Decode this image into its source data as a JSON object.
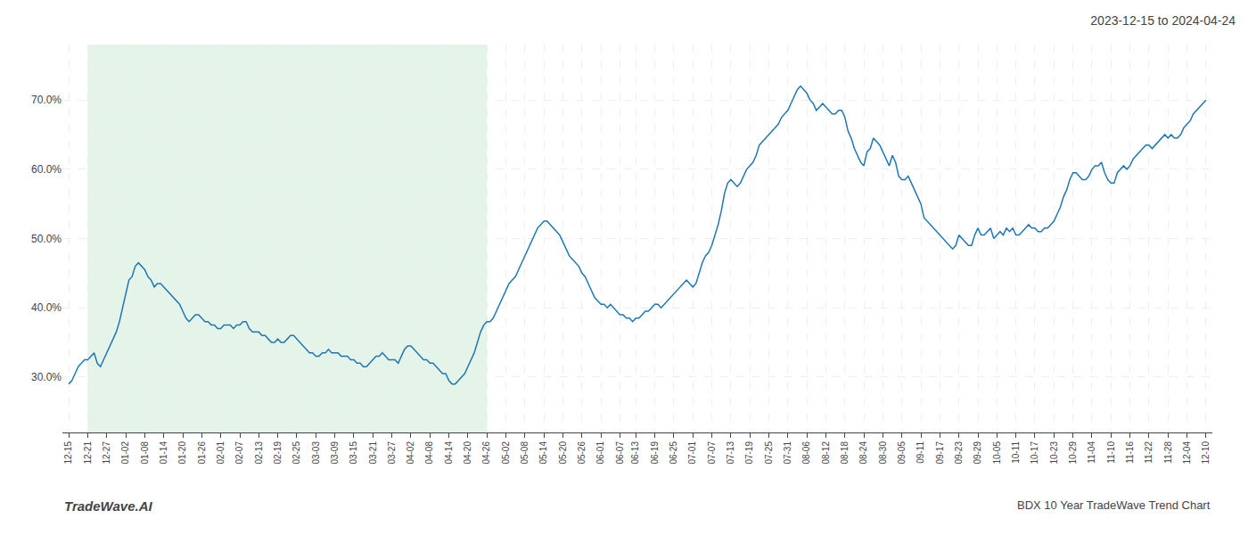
{
  "chart_data": {
    "type": "line",
    "title": "2023-12-15 to 2024-04-24",
    "annotations": [
      "TradeWave.AI",
      "BDX 10 Year TradeWave Trend Chart"
    ],
    "grid": true,
    "ylim": [
      22,
      78
    ],
    "yticks": [
      {
        "value": 30.0,
        "label": "30.0%"
      },
      {
        "value": 40.0,
        "label": "40.0%"
      },
      {
        "value": 50.0,
        "label": "50.0%"
      },
      {
        "value": 60.0,
        "label": "60.0%"
      },
      {
        "value": 70.0,
        "label": "70.0%"
      }
    ],
    "shade": {
      "from": "12-21",
      "to": "04-26",
      "color": "#d4edda"
    },
    "categories": [
      "12-15",
      null,
      null,
      null,
      null,
      null,
      "12-21",
      null,
      null,
      null,
      null,
      null,
      "12-27",
      null,
      null,
      null,
      null,
      null,
      "01-02",
      null,
      null,
      null,
      null,
      null,
      "01-08",
      null,
      null,
      null,
      null,
      null,
      "01-14",
      null,
      null,
      null,
      null,
      null,
      "01-20",
      null,
      null,
      null,
      null,
      null,
      "01-26",
      null,
      null,
      null,
      null,
      null,
      "02-01",
      null,
      null,
      null,
      null,
      null,
      "02-07",
      null,
      null,
      null,
      null,
      null,
      "02-13",
      null,
      null,
      null,
      null,
      null,
      "02-19",
      null,
      null,
      null,
      null,
      null,
      "02-25",
      null,
      null,
      null,
      null,
      null,
      "03-03",
      null,
      null,
      null,
      null,
      null,
      "03-09",
      null,
      null,
      null,
      null,
      null,
      "03-15",
      null,
      null,
      null,
      null,
      null,
      "03-21",
      null,
      null,
      null,
      null,
      null,
      "03-27",
      null,
      null,
      null,
      null,
      null,
      "04-02",
      null,
      null,
      null,
      null,
      null,
      "04-08",
      null,
      null,
      null,
      null,
      null,
      "04-14",
      null,
      null,
      null,
      null,
      null,
      "04-20",
      null,
      null,
      null,
      null,
      null,
      "04-26",
      null,
      null,
      null,
      null,
      null,
      "05-02",
      null,
      null,
      null,
      null,
      null,
      "05-08",
      null,
      null,
      null,
      null,
      null,
      "05-14",
      null,
      null,
      null,
      null,
      null,
      "05-20",
      null,
      null,
      null,
      null,
      null,
      "05-26",
      null,
      null,
      null,
      null,
      null,
      "06-01",
      null,
      null,
      null,
      null,
      null,
      "06-07",
      null,
      null,
      null,
      null,
      "06-13",
      null,
      null,
      null,
      null,
      null,
      "06-19",
      null,
      null,
      null,
      null,
      null,
      "06-25",
      null,
      null,
      null,
      null,
      null,
      "07-01",
      null,
      null,
      null,
      null,
      null,
      "07-07",
      null,
      null,
      null,
      null,
      null,
      "07-13",
      null,
      null,
      null,
      null,
      null,
      "07-19",
      null,
      null,
      null,
      null,
      null,
      "07-25",
      null,
      null,
      null,
      null,
      null,
      "07-31",
      null,
      null,
      null,
      null,
      null,
      "08-06",
      null,
      null,
      null,
      null,
      null,
      "08-12",
      null,
      null,
      null,
      null,
      null,
      "08-18",
      null,
      null,
      null,
      null,
      null,
      "08-24",
      null,
      null,
      null,
      null,
      null,
      "08-30",
      null,
      null,
      null,
      null,
      null,
      "09-05",
      null,
      null,
      null,
      null,
      null,
      "09-11",
      null,
      null,
      null,
      null,
      null,
      "09-17",
      null,
      null,
      null,
      null,
      null,
      "09-23",
      null,
      null,
      null,
      null,
      null,
      "09-29",
      null,
      null,
      null,
      null,
      null,
      "10-05",
      null,
      null,
      null,
      null,
      null,
      "10-11",
      null,
      null,
      null,
      null,
      null,
      "10-17",
      null,
      null,
      null,
      null,
      null,
      "10-23",
      null,
      null,
      null,
      null,
      null,
      "10-29",
      null,
      null,
      null,
      null,
      null,
      "11-04",
      null,
      null,
      null,
      null,
      null,
      "11-10",
      null,
      null,
      null,
      null,
      null,
      "11-16",
      null,
      null,
      null,
      null,
      null,
      "11-22",
      null,
      null,
      null,
      null,
      null,
      "11-28",
      null,
      null,
      null,
      null,
      null,
      "12-04",
      null,
      null,
      null,
      null,
      null,
      "12-10"
    ],
    "values": [
      29.0,
      29.5,
      30.5,
      31.5,
      32.0,
      32.5,
      32.5,
      33.0,
      33.5,
      32.0,
      31.5,
      32.5,
      33.5,
      34.5,
      35.5,
      36.5,
      38.0,
      40.0,
      42.0,
      44.0,
      44.5,
      46.0,
      46.5,
      46.0,
      45.5,
      44.5,
      44.0,
      43.0,
      43.5,
      43.5,
      43.0,
      42.5,
      42.0,
      41.5,
      41.0,
      40.5,
      39.5,
      38.5,
      38.0,
      38.5,
      39.0,
      39.0,
      38.5,
      38.0,
      38.0,
      37.5,
      37.5,
      37.0,
      37.0,
      37.5,
      37.5,
      37.5,
      37.0,
      37.5,
      37.5,
      38.0,
      38.0,
      37.0,
      36.5,
      36.5,
      36.5,
      36.0,
      36.0,
      35.5,
      35.0,
      35.0,
      35.5,
      35.0,
      35.0,
      35.5,
      36.0,
      36.0,
      35.5,
      35.0,
      34.5,
      34.0,
      33.5,
      33.5,
      33.0,
      33.0,
      33.5,
      33.5,
      34.0,
      33.5,
      33.5,
      33.5,
      33.0,
      33.0,
      33.0,
      32.5,
      32.5,
      32.0,
      32.0,
      31.5,
      31.5,
      32.0,
      32.5,
      33.0,
      33.0,
      33.5,
      33.0,
      32.5,
      32.5,
      32.5,
      32.0,
      33.0,
      34.0,
      34.5,
      34.5,
      34.0,
      33.5,
      33.0,
      32.5,
      32.5,
      32.0,
      32.0,
      31.5,
      31.0,
      30.5,
      30.5,
      29.5,
      29.0,
      29.0,
      29.5,
      30.0,
      30.5,
      31.5,
      32.5,
      33.5,
      35.0,
      36.5,
      37.5,
      38.0,
      38.0,
      38.5,
      39.5,
      40.5,
      41.5,
      42.5,
      43.5,
      44.0,
      44.5,
      45.5,
      46.5,
      47.5,
      48.5,
      49.5,
      50.5,
      51.5,
      52.0,
      52.5,
      52.5,
      52.0,
      51.5,
      51.0,
      50.5,
      49.5,
      48.5,
      47.5,
      47.0,
      46.5,
      46.0,
      45.0,
      44.5,
      43.5,
      42.5,
      41.5,
      41.0,
      40.5,
      40.5,
      40.0,
      40.5,
      40.0,
      39.5,
      39.0,
      39.0,
      38.5,
      38.5,
      38.0,
      38.5,
      38.5,
      39.0,
      39.5,
      39.5,
      40.0,
      40.5,
      40.5,
      40.0,
      40.5,
      41.0,
      41.5,
      42.0,
      42.5,
      43.0,
      43.5,
      44.0,
      43.5,
      43.0,
      43.5,
      45.0,
      46.5,
      47.5,
      48.0,
      49.0,
      50.5,
      52.0,
      54.0,
      56.5,
      58.0,
      58.5,
      58.0,
      57.5,
      58.0,
      59.0,
      60.0,
      60.5,
      61.0,
      62.0,
      63.5,
      64.0,
      64.5,
      65.0,
      65.5,
      66.0,
      66.5,
      67.5,
      68.0,
      68.5,
      69.5,
      70.5,
      71.5,
      72.0,
      71.5,
      71.0,
      70.0,
      69.5,
      68.5,
      69.0,
      69.5,
      69.0,
      68.5,
      68.0,
      68.0,
      68.5,
      68.5,
      67.5,
      65.5,
      64.5,
      63.0,
      62.0,
      61.0,
      60.5,
      62.5,
      63.0,
      64.5,
      64.0,
      63.5,
      62.5,
      61.5,
      60.5,
      62.0,
      61.0,
      59.0,
      58.5,
      58.5,
      59.0,
      58.0,
      57.0,
      56.0,
      55.0,
      53.0,
      52.5,
      52.0,
      51.5,
      51.0,
      50.5,
      50.0,
      49.5,
      49.0,
      48.5,
      49.0,
      50.5,
      50.0,
      49.5,
      49.0,
      49.0,
      50.5,
      51.5,
      50.5,
      50.5,
      51.0,
      51.5,
      50.0,
      50.5,
      51.0,
      50.5,
      51.5,
      51.0,
      51.5,
      50.5,
      50.5,
      51.0,
      51.5,
      52.0,
      51.5,
      51.5,
      51.0,
      51.0,
      51.5,
      51.5,
      52.0,
      52.5,
      53.5,
      54.5,
      56.0,
      57.0,
      58.5,
      59.5,
      59.5,
      59.0,
      58.5,
      58.5,
      59.0,
      60.0,
      60.5,
      60.5,
      61.0,
      59.5,
      58.5,
      58.0,
      58.0,
      59.5,
      60.0,
      60.5,
      60.0,
      60.5,
      61.5,
      62.0,
      62.5,
      63.0,
      63.5,
      63.5,
      63.0,
      63.5,
      64.0,
      64.5,
      65.0,
      64.5,
      65.0,
      64.5,
      64.5,
      65.0,
      66.0,
      66.5,
      67.0,
      68.0,
      68.5,
      69.0,
      69.5,
      70.0
    ]
  }
}
